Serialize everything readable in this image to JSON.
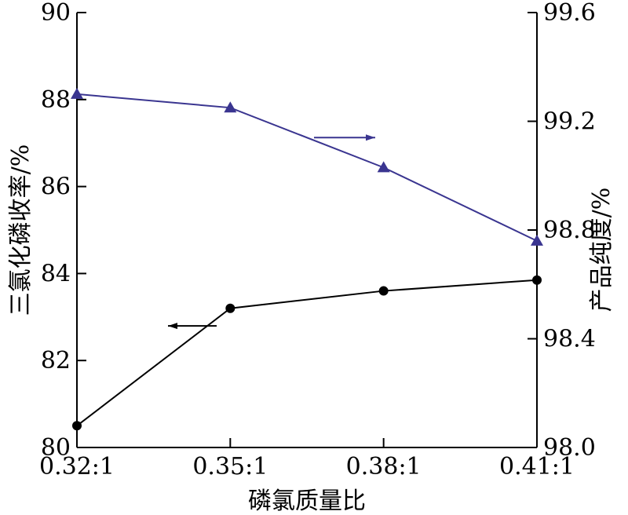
{
  "chart_data": {
    "type": "line",
    "categories": [
      "0.32:1",
      "0.35:1",
      "0.38:1",
      "0.41:1"
    ],
    "xlabel": "磷氯质量比",
    "y_left": {
      "label": "三氯化磷收率/%",
      "lim": [
        80,
        90
      ],
      "ticks": [
        "80",
        "82",
        "84",
        "86",
        "88",
        "90"
      ]
    },
    "y_right": {
      "label": "产品纯度/%",
      "lim": [
        98.0,
        99.6
      ],
      "ticks": [
        "98.0",
        "98.4",
        "98.8",
        "99.2",
        "99.6"
      ]
    },
    "series": [
      {
        "axis": "left",
        "marker": "circle",
        "color": "#000000",
        "values": [
          80.5,
          83.2,
          83.6,
          83.85
        ]
      },
      {
        "axis": "right",
        "marker": "triangle",
        "color": "#3a3590",
        "values": [
          99.3,
          99.25,
          99.03,
          98.76
        ]
      }
    ],
    "grid": false,
    "legend": "none"
  }
}
